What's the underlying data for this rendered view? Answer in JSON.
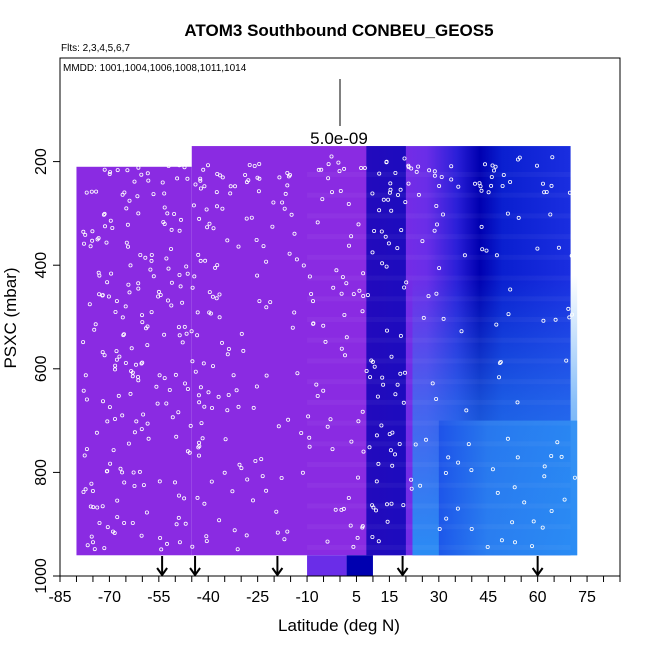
{
  "chart_data": {
    "type": "heatmap",
    "title": "ATOM3 Southbound CONBEU_GEOS5",
    "flights_note": "Flts: 2,3,4,5,6,7",
    "dates_note": "MMDD: 1001,1004,1006,1008,1011,1014",
    "scale_label": "5.0e-09",
    "xlabel": "Latitude (deg N)",
    "ylabel": "PSXC (mbar)",
    "xlim": [
      -85,
      85
    ],
    "ylim": [
      1000,
      0
    ],
    "x_ticks": [
      -85,
      -70,
      -55,
      -40,
      -25,
      -10,
      5,
      15,
      30,
      45,
      60,
      75
    ],
    "y_ticks": [
      200,
      400,
      600,
      800,
      1000
    ],
    "arrow_latitudes": [
      -54,
      -44,
      -19,
      19,
      60
    ],
    "colors": {
      "background_field": "#8a2be2",
      "mid_field": "#6a2de8",
      "high_field": "#1e3cf0",
      "peak_field": "#0000b0",
      "low_level_field": "#2a8cf4",
      "points": "#ffffff",
      "arrows": "#000000"
    },
    "regions": [
      {
        "lat": [
          -80,
          -45
        ],
        "p": [
          210,
          960
        ],
        "level": "background_field"
      },
      {
        "lat": [
          -45,
          -10
        ],
        "p": [
          170,
          960
        ],
        "level": "background_field"
      },
      {
        "lat": [
          -10,
          10
        ],
        "p": [
          170,
          1000
        ],
        "level": "mid_field"
      },
      {
        "lat": [
          5,
          20
        ],
        "p": [
          170,
          1000
        ],
        "level": "peak_field"
      },
      {
        "lat": [
          20,
          70
        ],
        "p": [
          170,
          480
        ],
        "level": "high_field"
      },
      {
        "lat": [
          30,
          72
        ],
        "p": [
          480,
          960
        ],
        "level": "low_level_field"
      }
    ],
    "grid": false
  }
}
